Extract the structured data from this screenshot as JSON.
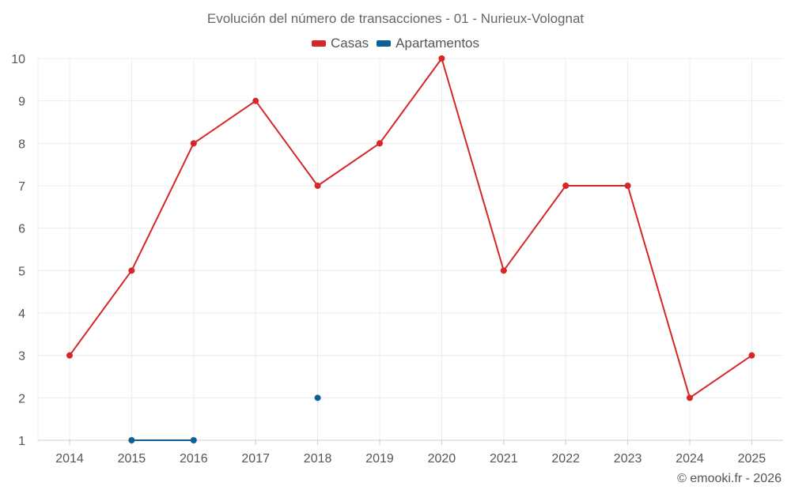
{
  "chart_data": {
    "type": "line",
    "title": "Evolución del número de transacciones - 01 - Nurieux-Volognat",
    "xlabel": "",
    "ylabel": "",
    "categories": [
      "2014",
      "2015",
      "2016",
      "2017",
      "2018",
      "2019",
      "2020",
      "2021",
      "2022",
      "2023",
      "2024",
      "2025"
    ],
    "ylim": [
      1,
      10
    ],
    "yticks": [
      "1",
      "2",
      "3",
      "4",
      "5",
      "6",
      "7",
      "8",
      "9",
      "10"
    ],
    "grid": true,
    "legend_position": "top-center",
    "series": [
      {
        "name": "Casas",
        "color": "#d62728",
        "values": [
          3,
          5,
          8,
          9,
          7,
          8,
          10,
          5,
          7,
          7,
          2,
          3
        ]
      },
      {
        "name": "Apartamentos",
        "color": "#0b6196",
        "values": [
          null,
          1,
          1,
          null,
          2,
          null,
          null,
          null,
          null,
          null,
          null,
          null
        ]
      }
    ]
  },
  "credit": "© emooki.fr - 2026"
}
